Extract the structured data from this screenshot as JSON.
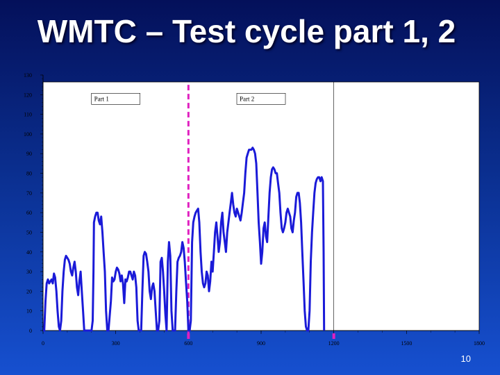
{
  "slide": {
    "title": "WMTC – Test cycle part 1, 2",
    "page_number": "10"
  },
  "colors": {
    "background_top": "#04105a",
    "background_bottom": "#1650d0",
    "series_line": "#1a1ad8",
    "divider": "#e020c0",
    "plot_background": "#ffffff"
  },
  "chart_data": {
    "type": "line",
    "title": "",
    "xlabel": "",
    "ylabel": "",
    "xlim": [
      0,
      1800
    ],
    "ylim": [
      0,
      130
    ],
    "x_ticks": [
      0,
      300,
      600,
      900,
      1200,
      1500,
      1800
    ],
    "y_ticks": [
      0,
      10,
      20,
      30,
      40,
      50,
      60,
      70,
      80,
      90,
      100,
      110,
      120,
      130
    ],
    "grid": false,
    "annotations": [
      {
        "text": "Part 1",
        "x": 300
      },
      {
        "text": "Part 2",
        "x": 900
      }
    ],
    "dividers": [
      600,
      1200
    ],
    "series": [
      {
        "values": [
          [
            0,
            0
          ],
          [
            5,
            0
          ],
          [
            10,
            15
          ],
          [
            15,
            24
          ],
          [
            20,
            26
          ],
          [
            25,
            24
          ],
          [
            30,
            25
          ],
          [
            35,
            26
          ],
          [
            40,
            24
          ],
          [
            45,
            29
          ],
          [
            50,
            27
          ],
          [
            55,
            20
          ],
          [
            60,
            10
          ],
          [
            65,
            2
          ],
          [
            70,
            0
          ],
          [
            75,
            5
          ],
          [
            80,
            20
          ],
          [
            85,
            30
          ],
          [
            90,
            36
          ],
          [
            95,
            38
          ],
          [
            100,
            37
          ],
          [
            105,
            36
          ],
          [
            110,
            34
          ],
          [
            115,
            30
          ],
          [
            120,
            28
          ],
          [
            125,
            32
          ],
          [
            130,
            35
          ],
          [
            135,
            30
          ],
          [
            140,
            22
          ],
          [
            145,
            18
          ],
          [
            150,
            25
          ],
          [
            155,
            30
          ],
          [
            160,
            20
          ],
          [
            165,
            10
          ],
          [
            170,
            0
          ],
          [
            180,
            0
          ],
          [
            190,
            0
          ],
          [
            200,
            0
          ],
          [
            205,
            5
          ],
          [
            208,
            30
          ],
          [
            210,
            55
          ],
          [
            215,
            58
          ],
          [
            220,
            60
          ],
          [
            225,
            60
          ],
          [
            230,
            56
          ],
          [
            235,
            54
          ],
          [
            240,
            58
          ],
          [
            245,
            50
          ],
          [
            250,
            40
          ],
          [
            255,
            30
          ],
          [
            260,
            10
          ],
          [
            265,
            0
          ],
          [
            270,
            0
          ],
          [
            280,
            15
          ],
          [
            285,
            27
          ],
          [
            290,
            25
          ],
          [
            295,
            26
          ],
          [
            300,
            30
          ],
          [
            305,
            32
          ],
          [
            310,
            31
          ],
          [
            315,
            29
          ],
          [
            320,
            25
          ],
          [
            325,
            28
          ],
          [
            330,
            24
          ],
          [
            335,
            14
          ],
          [
            340,
            26
          ],
          [
            345,
            25
          ],
          [
            350,
            27
          ],
          [
            355,
            30
          ],
          [
            360,
            30
          ],
          [
            365,
            28
          ],
          [
            370,
            26
          ],
          [
            375,
            30
          ],
          [
            380,
            28
          ],
          [
            385,
            22
          ],
          [
            390,
            5
          ],
          [
            395,
            0
          ],
          [
            405,
            0
          ],
          [
            410,
            20
          ],
          [
            415,
            38
          ],
          [
            420,
            40
          ],
          [
            425,
            39
          ],
          [
            430,
            35
          ],
          [
            435,
            30
          ],
          [
            440,
            20
          ],
          [
            445,
            16
          ],
          [
            450,
            22
          ],
          [
            455,
            24
          ],
          [
            460,
            20
          ],
          [
            465,
            10
          ],
          [
            470,
            0
          ],
          [
            475,
            0
          ],
          [
            480,
            5
          ],
          [
            485,
            35
          ],
          [
            490,
            37
          ],
          [
            495,
            30
          ],
          [
            500,
            20
          ],
          [
            505,
            8
          ],
          [
            510,
            0
          ],
          [
            515,
            35
          ],
          [
            520,
            45
          ],
          [
            525,
            38
          ],
          [
            530,
            10
          ],
          [
            535,
            0
          ],
          [
            545,
            0
          ],
          [
            550,
            20
          ],
          [
            555,
            35
          ],
          [
            560,
            37
          ],
          [
            565,
            38
          ],
          [
            570,
            40
          ],
          [
            575,
            45
          ],
          [
            580,
            42
          ],
          [
            585,
            35
          ],
          [
            590,
            25
          ],
          [
            595,
            15
          ],
          [
            600,
            0
          ],
          [
            605,
            0
          ],
          [
            610,
            5
          ],
          [
            615,
            45
          ],
          [
            620,
            55
          ],
          [
            625,
            58
          ],
          [
            630,
            60
          ],
          [
            635,
            61
          ],
          [
            640,
            62
          ],
          [
            645,
            55
          ],
          [
            650,
            40
          ],
          [
            655,
            30
          ],
          [
            660,
            24
          ],
          [
            665,
            22
          ],
          [
            670,
            24
          ],
          [
            675,
            30
          ],
          [
            680,
            28
          ],
          [
            685,
            20
          ],
          [
            690,
            25
          ],
          [
            695,
            35
          ],
          [
            700,
            30
          ],
          [
            705,
            40
          ],
          [
            710,
            50
          ],
          [
            715,
            55
          ],
          [
            720,
            48
          ],
          [
            725,
            40
          ],
          [
            730,
            45
          ],
          [
            735,
            55
          ],
          [
            740,
            60
          ],
          [
            745,
            50
          ],
          [
            750,
            45
          ],
          [
            755,
            40
          ],
          [
            760,
            50
          ],
          [
            765,
            55
          ],
          [
            770,
            60
          ],
          [
            775,
            65
          ],
          [
            780,
            70
          ],
          [
            785,
            64
          ],
          [
            790,
            60
          ],
          [
            795,
            58
          ],
          [
            800,
            62
          ],
          [
            805,
            60
          ],
          [
            810,
            58
          ],
          [
            815,
            56
          ],
          [
            820,
            60
          ],
          [
            825,
            65
          ],
          [
            830,
            70
          ],
          [
            835,
            80
          ],
          [
            840,
            88
          ],
          [
            845,
            90
          ],
          [
            850,
            92
          ],
          [
            855,
            92
          ],
          [
            860,
            92
          ],
          [
            865,
            93
          ],
          [
            870,
            92
          ],
          [
            875,
            90
          ],
          [
            880,
            85
          ],
          [
            885,
            70
          ],
          [
            890,
            55
          ],
          [
            895,
            45
          ],
          [
            900,
            34
          ],
          [
            905,
            40
          ],
          [
            910,
            52
          ],
          [
            915,
            55
          ],
          [
            920,
            48
          ],
          [
            925,
            45
          ],
          [
            930,
            58
          ],
          [
            935,
            70
          ],
          [
            940,
            78
          ],
          [
            945,
            82
          ],
          [
            950,
            83
          ],
          [
            955,
            82
          ],
          [
            960,
            80
          ],
          [
            965,
            80
          ],
          [
            970,
            75
          ],
          [
            975,
            70
          ],
          [
            980,
            60
          ],
          [
            985,
            52
          ],
          [
            990,
            50
          ],
          [
            995,
            52
          ],
          [
            1000,
            55
          ],
          [
            1005,
            60
          ],
          [
            1010,
            62
          ],
          [
            1015,
            60
          ],
          [
            1020,
            58
          ],
          [
            1025,
            52
          ],
          [
            1030,
            50
          ],
          [
            1035,
            56
          ],
          [
            1040,
            60
          ],
          [
            1045,
            68
          ],
          [
            1050,
            70
          ],
          [
            1055,
            70
          ],
          [
            1060,
            65
          ],
          [
            1065,
            55
          ],
          [
            1070,
            40
          ],
          [
            1075,
            25
          ],
          [
            1080,
            10
          ],
          [
            1085,
            2
          ],
          [
            1090,
            0
          ],
          [
            1095,
            0
          ],
          [
            1100,
            10
          ],
          [
            1105,
            35
          ],
          [
            1110,
            50
          ],
          [
            1115,
            60
          ],
          [
            1120,
            70
          ],
          [
            1125,
            75
          ],
          [
            1130,
            77
          ],
          [
            1135,
            78
          ],
          [
            1140,
            78
          ],
          [
            1145,
            76
          ],
          [
            1150,
            78
          ],
          [
            1155,
            76
          ],
          [
            1158,
            40
          ],
          [
            1160,
            0
          ]
        ]
      }
    ]
  }
}
